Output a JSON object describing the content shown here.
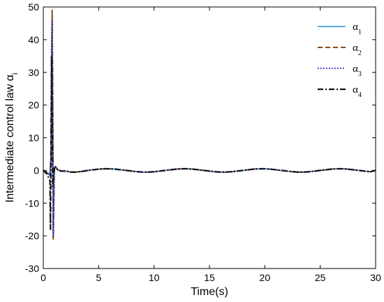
{
  "chart_data": {
    "type": "line",
    "title": "",
    "xlabel": "Time(s)",
    "ylabel_main": "Intermediate control law α",
    "ylabel_sub": "i",
    "xlim": [
      0,
      30
    ],
    "ylim": [
      -30,
      50
    ],
    "xticks": [
      0,
      5,
      10,
      15,
      20,
      25,
      30
    ],
    "yticks": [
      -30,
      -20,
      -10,
      0,
      10,
      20,
      30,
      40,
      50
    ],
    "grid": false,
    "legend_position": "top-right",
    "series": [
      {
        "name": "α",
        "subscript": "1",
        "color": "#5aaee6",
        "dash": "solid",
        "x": [
          0,
          0.3,
          0.6,
          0.7,
          0.75,
          0.8,
          0.85,
          0.9,
          0.95,
          1.0,
          1.1,
          1.3,
          1.6,
          2,
          2.5,
          3,
          3.5,
          4,
          4.5,
          5,
          5.5,
          6,
          6.5,
          7,
          7.5,
          8,
          8.5,
          9,
          9.5,
          10,
          10.5,
          11,
          11.5,
          12,
          12.5,
          13,
          13.5,
          14,
          14.5,
          15,
          15.5,
          16,
          16.5,
          17,
          17.5,
          18,
          18.5,
          19,
          19.5,
          20,
          20.5,
          21,
          21.5,
          22,
          22.5,
          23,
          23.5,
          24,
          24.5,
          25,
          25.5,
          26,
          26.5,
          27,
          27.5,
          28,
          28.5,
          29,
          29.5,
          30
        ],
        "y": [
          0,
          -0.5,
          -1.5,
          5,
          38,
          47,
          20,
          -18,
          -8,
          1,
          1.2,
          0.2,
          -0.2,
          -0.2,
          -0.5,
          -0.5,
          -0.3,
          0,
          0.2,
          0.4,
          0.5,
          0.5,
          0.4,
          0.2,
          0,
          -0.2,
          -0.4,
          -0.5,
          -0.5,
          -0.4,
          -0.2,
          0,
          0.2,
          0.4,
          0.5,
          0.5,
          0.4,
          0.2,
          0,
          -0.2,
          -0.4,
          -0.5,
          -0.5,
          -0.4,
          -0.2,
          0,
          0.2,
          0.4,
          0.5,
          0.5,
          0.4,
          0.2,
          0,
          -0.2,
          -0.4,
          -0.5,
          -0.5,
          -0.4,
          -0.2,
          0,
          0.2,
          0.4,
          0.5,
          0.5,
          0.4,
          0.2,
          0,
          -0.2,
          -0.4,
          0
        ]
      },
      {
        "name": "α",
        "subscript": "2",
        "color": "#8b4a12",
        "dash": "dashed",
        "x": [
          0,
          0.3,
          0.6,
          0.7,
          0.75,
          0.8,
          0.85,
          0.9,
          0.95,
          1.0,
          1.1,
          1.3,
          1.6,
          2,
          2.5,
          3,
          3.5,
          4,
          4.5,
          5,
          5.5,
          6,
          6.5,
          7,
          7.5,
          8,
          8.5,
          9,
          9.5,
          10,
          10.5,
          11,
          11.5,
          12,
          12.5,
          13,
          13.5,
          14,
          14.5,
          15,
          15.5,
          16,
          16.5,
          17,
          17.5,
          18,
          18.5,
          19,
          19.5,
          20,
          20.5,
          21,
          21.5,
          22,
          22.5,
          23,
          23.5,
          24,
          24.5,
          25,
          25.5,
          26,
          26.5,
          27,
          27.5,
          28,
          28.5,
          29,
          29.5,
          30
        ],
        "y": [
          0,
          -0.5,
          -1.5,
          3,
          30,
          49,
          25,
          -21,
          -10,
          1,
          1.2,
          0.2,
          -0.2,
          -0.2,
          -0.5,
          -0.5,
          -0.3,
          0,
          0.2,
          0.4,
          0.5,
          0.5,
          0.4,
          0.2,
          0,
          -0.2,
          -0.4,
          -0.5,
          -0.5,
          -0.4,
          -0.2,
          0,
          0.2,
          0.4,
          0.5,
          0.5,
          0.4,
          0.2,
          0,
          -0.2,
          -0.4,
          -0.5,
          -0.5,
          -0.4,
          -0.2,
          0,
          0.2,
          0.4,
          0.5,
          0.5,
          0.4,
          0.2,
          0,
          -0.2,
          -0.4,
          -0.5,
          -0.5,
          -0.4,
          -0.2,
          0,
          0.2,
          0.4,
          0.5,
          0.5,
          0.4,
          0.2,
          0,
          -0.2,
          -0.4,
          0
        ]
      },
      {
        "name": "α",
        "subscript": "3",
        "color": "#2222cc",
        "dash": "dotted",
        "x": [
          0,
          0.3,
          0.6,
          0.7,
          0.75,
          0.8,
          0.85,
          0.9,
          0.95,
          1.0,
          1.1,
          1.3,
          1.6,
          2,
          2.5,
          3,
          3.5,
          4,
          4.5,
          5,
          5.5,
          6,
          6.5,
          7,
          7.5,
          8,
          8.5,
          9,
          9.5,
          10,
          10.5,
          11,
          11.5,
          12,
          12.5,
          13,
          13.5,
          14,
          14.5,
          15,
          15.5,
          16,
          16.5,
          17,
          17.5,
          18,
          18.5,
          19,
          19.5,
          20,
          20.5,
          21,
          21.5,
          22,
          22.5,
          23,
          23.5,
          24,
          24.5,
          25,
          25.5,
          26,
          26.5,
          27,
          27.5,
          28,
          28.5,
          29,
          29.5,
          30
        ],
        "y": [
          0,
          -0.5,
          -1.5,
          4,
          35,
          46,
          22,
          -20,
          -9,
          1,
          1.2,
          0.2,
          -0.2,
          -0.2,
          -0.5,
          -0.5,
          -0.3,
          0,
          0.2,
          0.4,
          0.5,
          0.5,
          0.4,
          0.2,
          0,
          -0.2,
          -0.4,
          -0.5,
          -0.5,
          -0.4,
          -0.2,
          0,
          0.2,
          0.4,
          0.5,
          0.5,
          0.4,
          0.2,
          0,
          -0.2,
          -0.4,
          -0.5,
          -0.5,
          -0.4,
          -0.2,
          0,
          0.2,
          0.4,
          0.5,
          0.5,
          0.4,
          0.2,
          0,
          -0.2,
          -0.4,
          -0.5,
          -0.5,
          -0.4,
          -0.2,
          0,
          0.2,
          0.4,
          0.5,
          0.5,
          0.4,
          0.2,
          0,
          -0.2,
          -0.4,
          0
        ]
      },
      {
        "name": "α",
        "subscript": "4",
        "color": "#111111",
        "dash": "dashdot",
        "x": [
          0,
          0.3,
          0.6,
          0.65,
          0.7,
          0.75,
          0.8,
          0.85,
          0.9,
          1.0,
          1.1,
          1.3,
          1.6,
          2,
          2.5,
          3,
          3.5,
          4,
          4.5,
          5,
          5.5,
          6,
          6.5,
          7,
          7.5,
          8,
          8.5,
          9,
          9.5,
          10,
          10.5,
          11,
          11.5,
          12,
          12.5,
          13,
          13.5,
          14,
          14.5,
          15,
          15.5,
          16,
          16.5,
          17,
          17.5,
          18,
          18.5,
          19,
          19.5,
          20,
          20.5,
          21,
          21.5,
          22,
          22.5,
          23,
          23.5,
          24,
          24.5,
          25,
          25.5,
          26,
          26.5,
          27,
          27.5,
          28,
          28.5,
          29,
          29.5,
          30
        ],
        "y": [
          0,
          -1,
          -3,
          -18,
          10,
          35,
          20,
          -5,
          -2,
          0.5,
          1,
          0.2,
          -0.2,
          -0.2,
          -0.5,
          -0.5,
          -0.3,
          0,
          0.2,
          0.4,
          0.5,
          0.5,
          0.4,
          0.2,
          0,
          -0.2,
          -0.4,
          -0.5,
          -0.5,
          -0.4,
          -0.2,
          0,
          0.2,
          0.4,
          0.5,
          0.5,
          0.4,
          0.2,
          0,
          -0.2,
          -0.4,
          -0.5,
          -0.5,
          -0.4,
          -0.2,
          0,
          0.2,
          0.4,
          0.5,
          0.5,
          0.4,
          0.2,
          0,
          -0.2,
          -0.4,
          -0.5,
          -0.5,
          -0.4,
          -0.2,
          0,
          0.2,
          0.4,
          0.5,
          0.5,
          0.4,
          0.2,
          0,
          -0.2,
          -0.4,
          0
        ]
      }
    ]
  }
}
